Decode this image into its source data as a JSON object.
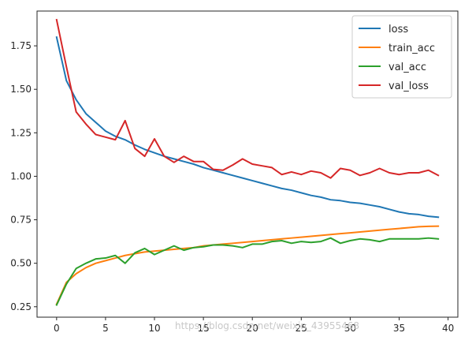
{
  "chart_data": {
    "type": "line",
    "title": "",
    "xlabel": "",
    "ylabel": "",
    "xlim": [
      -2,
      41
    ],
    "ylim": [
      0.19,
      1.95
    ],
    "xticks": [
      0,
      5,
      10,
      15,
      20,
      25,
      30,
      35,
      40
    ],
    "yticks": [
      0.25,
      0.5,
      0.75,
      1.0,
      1.25,
      1.5,
      1.75
    ],
    "ytick_labels": [
      "0.25",
      "0.50",
      "0.75",
      "1.00",
      "1.25",
      "1.50",
      "1.75"
    ],
    "grid": false,
    "legend_position": "top-right",
    "x": [
      0,
      1,
      2,
      3,
      4,
      5,
      6,
      7,
      8,
      9,
      10,
      11,
      12,
      13,
      14,
      15,
      16,
      17,
      18,
      19,
      20,
      21,
      22,
      23,
      24,
      25,
      26,
      27,
      28,
      29,
      30,
      31,
      32,
      33,
      34,
      35,
      36,
      37,
      38,
      39
    ],
    "series": [
      {
        "name": "loss",
        "color": "#1f77b4",
        "values": [
          1.8,
          1.55,
          1.44,
          1.36,
          1.31,
          1.26,
          1.23,
          1.21,
          1.18,
          1.155,
          1.135,
          1.115,
          1.1,
          1.085,
          1.07,
          1.05,
          1.035,
          1.02,
          1.005,
          0.99,
          0.975,
          0.96,
          0.945,
          0.93,
          0.92,
          0.905,
          0.89,
          0.88,
          0.865,
          0.86,
          0.85,
          0.845,
          0.835,
          0.825,
          0.81,
          0.795,
          0.785,
          0.78,
          0.77,
          0.765
        ]
      },
      {
        "name": "train_acc",
        "color": "#ff7f0e",
        "values": [
          0.265,
          0.39,
          0.44,
          0.475,
          0.5,
          0.515,
          0.53,
          0.545,
          0.555,
          0.565,
          0.57,
          0.575,
          0.58,
          0.585,
          0.59,
          0.6,
          0.605,
          0.61,
          0.615,
          0.62,
          0.625,
          0.63,
          0.635,
          0.64,
          0.645,
          0.65,
          0.655,
          0.66,
          0.665,
          0.67,
          0.675,
          0.68,
          0.685,
          0.69,
          0.695,
          0.7,
          0.705,
          0.71,
          0.712,
          0.713
        ]
      },
      {
        "name": "val_acc",
        "color": "#2ca02c",
        "values": [
          0.26,
          0.38,
          0.47,
          0.5,
          0.525,
          0.53,
          0.545,
          0.5,
          0.56,
          0.585,
          0.55,
          0.575,
          0.6,
          0.575,
          0.59,
          0.595,
          0.605,
          0.605,
          0.6,
          0.59,
          0.61,
          0.61,
          0.625,
          0.63,
          0.615,
          0.625,
          0.62,
          0.625,
          0.645,
          0.615,
          0.63,
          0.64,
          0.635,
          0.625,
          0.64,
          0.64,
          0.64,
          0.64,
          0.645,
          0.64
        ]
      },
      {
        "name": "val_loss",
        "color": "#d62728",
        "values": [
          1.9,
          1.63,
          1.37,
          1.3,
          1.24,
          1.225,
          1.21,
          1.32,
          1.16,
          1.115,
          1.215,
          1.115,
          1.08,
          1.115,
          1.085,
          1.085,
          1.04,
          1.035,
          1.065,
          1.1,
          1.07,
          1.06,
          1.05,
          1.01,
          1.025,
          1.01,
          1.03,
          1.02,
          0.99,
          1.045,
          1.035,
          1.005,
          1.02,
          1.045,
          1.02,
          1.01,
          1.02,
          1.02,
          1.035,
          1.005
        ]
      }
    ]
  },
  "watermark": "https://blog.csdn.net/weixin_43955468"
}
